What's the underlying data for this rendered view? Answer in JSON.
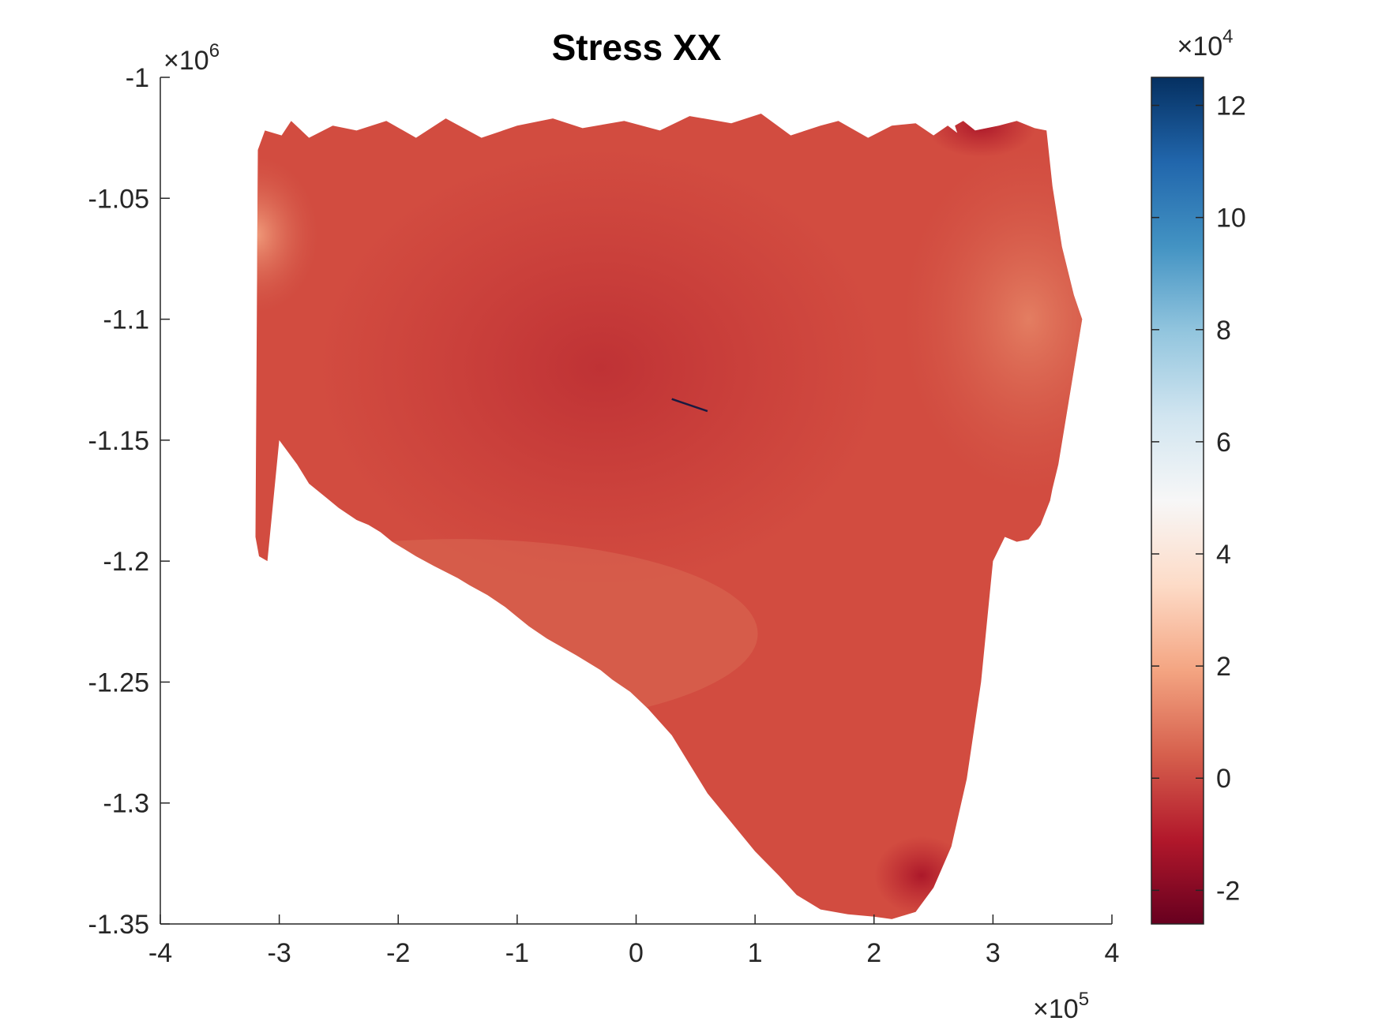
{
  "chart_data": {
    "type": "heatmap",
    "title": "Stress XX",
    "xlabel": "",
    "ylabel": "",
    "xlim": [
      -4,
      4
    ],
    "ylim": [
      -1.35,
      -1
    ],
    "x_ticks": [
      -4,
      -3,
      -2,
      -1,
      0,
      1,
      2,
      3,
      4
    ],
    "y_ticks": [
      -1,
      -1.05,
      -1.1,
      -1.15,
      -1.2,
      -1.25,
      -1.3,
      -1.35
    ],
    "x_multiplier": "×10",
    "x_multiplier_exp": "5",
    "y_multiplier": "×10",
    "y_multiplier_exp": "6",
    "grid": false,
    "colorbar": {
      "range": [
        -2.6,
        12.5
      ],
      "ticks": [
        -2,
        0,
        2,
        4,
        6,
        8,
        10,
        12
      ],
      "multiplier": "×10",
      "multiplier_exp": "4",
      "colormap": [
        "#67001f",
        "#b2182b",
        "#d6604d",
        "#f4a582",
        "#fddbc7",
        "#f7f7f7",
        "#d1e5f0",
        "#92c5de",
        "#4393c3",
        "#2166ac",
        "#053061"
      ]
    },
    "region_boundary": {
      "x": [
        -3.18,
        -3.12,
        -2.98,
        -2.9,
        -2.75,
        -2.55,
        -2.35,
        -2.1,
        -1.85,
        -1.6,
        -1.3,
        -1.0,
        -0.7,
        -0.45,
        -0.1,
        0.2,
        0.45,
        0.8,
        1.05,
        1.3,
        1.55,
        1.7,
        1.95,
        2.15,
        2.35,
        2.5,
        2.62,
        2.7,
        2.74,
        2.72,
        2.7,
        2.68,
        2.75,
        2.85,
        3.05,
        3.2,
        3.35,
        3.45,
        3.5,
        3.58,
        3.68,
        3.75,
        3.65,
        3.55,
        3.5,
        3.48,
        3.4,
        3.3,
        3.2,
        3.1,
        3.0,
        2.9,
        2.78,
        2.65,
        2.5,
        2.35,
        2.15,
        2.0,
        1.78,
        1.55,
        1.35,
        1.2,
        1.0,
        0.8,
        0.6,
        0.45,
        0.3,
        0.1,
        -0.05,
        -0.2,
        -0.3,
        -0.5,
        -0.75,
        -0.9,
        -1.0,
        -1.1,
        -1.25,
        -1.4,
        -1.5,
        -1.7,
        -1.85,
        -1.95,
        -2.05,
        -2.15,
        -2.25,
        -2.35,
        -2.5,
        -2.6,
        -2.75,
        -2.85,
        -3.0,
        -3.1,
        -3.17,
        -3.2
      ],
      "y": [
        -1.03,
        -1.022,
        -1.024,
        -1.018,
        -1.025,
        -1.02,
        -1.022,
        -1.018,
        -1.025,
        -1.017,
        -1.025,
        -1.02,
        -1.017,
        -1.021,
        -1.018,
        -1.022,
        -1.016,
        -1.019,
        -1.015,
        -1.024,
        -1.02,
        -1.018,
        -1.025,
        -1.02,
        -1.019,
        -1.024,
        -1.02,
        -1.023,
        -1.017,
        -1.02,
        -1.023,
        -1.02,
        -1.018,
        -1.022,
        -1.02,
        -1.018,
        -1.021,
        -1.022,
        -1.045,
        -1.07,
        -1.09,
        -1.1,
        -1.13,
        -1.16,
        -1.17,
        -1.175,
        -1.185,
        -1.191,
        -1.192,
        -1.19,
        -1.2,
        -1.25,
        -1.29,
        -1.318,
        -1.335,
        -1.345,
        -1.348,
        -1.347,
        -1.346,
        -1.344,
        -1.338,
        -1.33,
        -1.32,
        -1.308,
        -1.296,
        -1.284,
        -1.272,
        -1.261,
        -1.254,
        -1.249,
        -1.245,
        -1.239,
        -1.232,
        -1.227,
        -1.223,
        -1.219,
        -1.214,
        -1.21,
        -1.207,
        -1.202,
        -1.198,
        -1.195,
        -1.192,
        -1.188,
        -1.185,
        -1.183,
        -1.178,
        -1.174,
        -1.168,
        -1.16,
        -1.15,
        -1.2,
        -1.198,
        -1.19
      ]
    },
    "notes_visible_features": []
  }
}
